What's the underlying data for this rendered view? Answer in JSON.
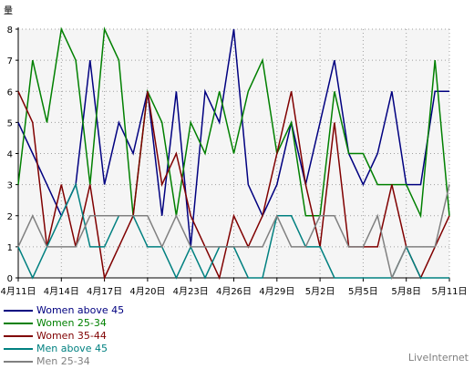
{
  "chart_data": {
    "type": "line",
    "ylabel": "量",
    "ylim": [
      0,
      8
    ],
    "yticks": [
      0,
      1,
      2,
      3,
      4,
      5,
      6,
      7,
      8
    ],
    "x_labels": [
      "4月11日",
      "4月14日",
      "4月17日",
      "4月20日",
      "4月23日",
      "4月26日",
      "4月29日",
      "5月2日",
      "5月5日",
      "5月8日",
      "5月11日"
    ],
    "x_label_days": [
      0,
      3,
      6,
      9,
      12,
      15,
      18,
      21,
      24,
      27,
      30
    ],
    "x_count": 31,
    "grid": true,
    "legend_position": "bottom-left",
    "series": [
      {
        "name": "Women above 45",
        "color": "#000080",
        "values": [
          5,
          4,
          3,
          2,
          3,
          7,
          3,
          5,
          4,
          6,
          2,
          6,
          1,
          6,
          5,
          8,
          3,
          2,
          3,
          5,
          3,
          5,
          7,
          4,
          3,
          4,
          6,
          3,
          3,
          6,
          6
        ]
      },
      {
        "name": "Women 25-34",
        "color": "#008000",
        "values": [
          3,
          7,
          5,
          8,
          7,
          3,
          8,
          7,
          2,
          6,
          5,
          2,
          5,
          4,
          6,
          4,
          6,
          7,
          4,
          5,
          2,
          2,
          6,
          4,
          4,
          3,
          3,
          3,
          2,
          7,
          2
        ]
      },
      {
        "name": "Women 35-44",
        "color": "#800000",
        "values": [
          6,
          5,
          1,
          3,
          1,
          3,
          0,
          1,
          2,
          6,
          3,
          4,
          2,
          1,
          0,
          2,
          1,
          2,
          4,
          6,
          3,
          1,
          5,
          1,
          1,
          1,
          3,
          1,
          0,
          1,
          2
        ]
      },
      {
        "name": "Men above 45",
        "color": "#008080",
        "values": [
          1,
          0,
          1,
          2,
          3,
          1,
          1,
          2,
          2,
          1,
          1,
          0,
          1,
          0,
          1,
          1,
          0,
          0,
          2,
          2,
          1,
          1,
          0,
          0,
          0,
          0,
          0,
          1,
          0,
          0,
          0
        ]
      },
      {
        "name": "Men 25-34",
        "color": "#808080",
        "values": [
          1,
          2,
          1,
          1,
          1,
          2,
          2,
          2,
          2,
          2,
          1,
          2,
          1,
          1,
          1,
          1,
          1,
          1,
          2,
          1,
          1,
          2,
          2,
          1,
          1,
          2,
          0,
          1,
          1,
          1,
          3
        ]
      }
    ]
  },
  "brand": {
    "label": "LiveInternet"
  }
}
